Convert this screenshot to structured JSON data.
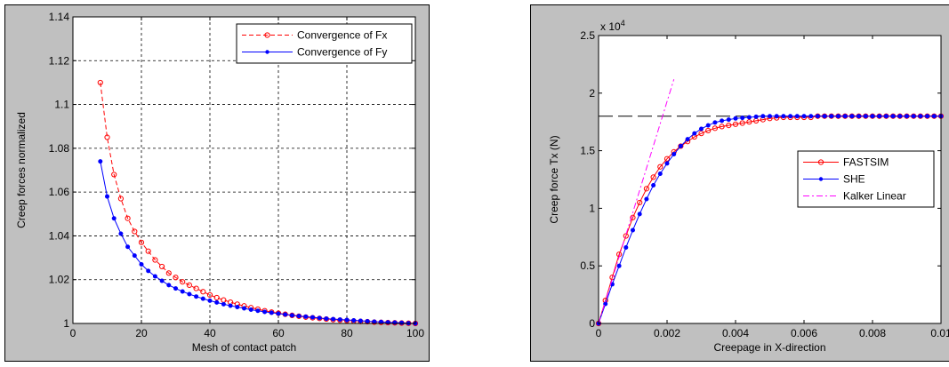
{
  "chart_data": [
    {
      "type": "line",
      "xlabel": "Mesh of contact patch",
      "ylabel": "Creep forces normalized",
      "xlim": [
        0,
        100
      ],
      "ylim": [
        1,
        1.14
      ],
      "x_ticks": [
        "0",
        "20",
        "40",
        "60",
        "80",
        "100"
      ],
      "y_ticks": [
        "1",
        "1.02",
        "1.04",
        "1.06",
        "1.08",
        "1.1",
        "1.12",
        "1.14"
      ],
      "grid": "dashed",
      "legend": "top-right",
      "series": [
        {
          "name": "Convergence of Fx",
          "color": "#ff0000",
          "marker": "open-circle",
          "line": "dashed",
          "x": [
            8,
            10,
            12,
            14,
            16,
            18,
            20,
            22,
            24,
            26,
            28,
            30,
            32,
            34,
            36,
            38,
            40,
            42,
            44,
            46,
            48,
            50,
            52,
            54,
            56,
            58,
            60,
            62,
            64,
            66,
            68,
            70,
            72,
            74,
            76,
            78,
            80,
            82,
            84,
            86,
            88,
            90,
            92,
            94,
            96,
            98,
            100
          ],
          "y": [
            1.11,
            1.085,
            1.068,
            1.057,
            1.048,
            1.042,
            1.037,
            1.033,
            1.029,
            1.026,
            1.023,
            1.021,
            1.019,
            1.0175,
            1.016,
            1.0145,
            1.013,
            1.0118,
            1.0107,
            1.0097,
            1.0088,
            1.008,
            1.0072,
            1.0065,
            1.0058,
            1.0052,
            1.0047,
            1.0042,
            1.0037,
            1.0033,
            1.0029,
            1.0026,
            1.0023,
            1.002,
            1.0017,
            1.0015,
            1.0013,
            1.0011,
            1.0009,
            1.0008,
            1.0006,
            1.0005,
            1.0004,
            1.0003,
            1.0002,
            1.0001,
            1.0
          ]
        },
        {
          "name": "Convergence of Fy",
          "color": "#0000ff",
          "marker": "dot",
          "line": "solid",
          "x": [
            8,
            10,
            12,
            14,
            16,
            18,
            20,
            22,
            24,
            26,
            28,
            30,
            32,
            34,
            36,
            38,
            40,
            42,
            44,
            46,
            48,
            50,
            52,
            54,
            56,
            58,
            60,
            62,
            64,
            66,
            68,
            70,
            72,
            74,
            76,
            78,
            80,
            82,
            84,
            86,
            88,
            90,
            92,
            94,
            96,
            98,
            100
          ],
          "y": [
            1.074,
            1.058,
            1.048,
            1.041,
            1.035,
            1.031,
            1.027,
            1.024,
            1.0215,
            1.0195,
            1.0175,
            1.016,
            1.0146,
            1.0134,
            1.0123,
            1.0113,
            1.0104,
            1.0096,
            1.0088,
            1.0081,
            1.0075,
            1.0069,
            1.0063,
            1.0058,
            1.0053,
            1.0049,
            1.0045,
            1.0041,
            1.0037,
            1.0034,
            1.0031,
            1.0028,
            1.0025,
            1.0022,
            1.002,
            1.0018,
            1.0016,
            1.0014,
            1.0012,
            1.001,
            1.0008,
            1.0007,
            1.0005,
            1.0004,
            1.0003,
            1.0001,
            1.0
          ]
        }
      ]
    },
    {
      "type": "line",
      "xlabel": "Creepage in X-direction",
      "ylabel": "Creep force Tx (N)",
      "multiplier": "x 10",
      "multiplier_exp": "4",
      "xlim": [
        0,
        0.01
      ],
      "ylim": [
        0,
        2.5
      ],
      "x_ticks": [
        "0",
        "0.002",
        "0.004",
        "0.006",
        "0.008",
        "0.01"
      ],
      "y_ticks": [
        "0",
        "0.5",
        "1",
        "1.5",
        "2",
        "2.5"
      ],
      "grid": "off",
      "legend": "right",
      "saturation_level": 1.8,
      "series": [
        {
          "name": "FASTSIM",
          "color": "#ff0000",
          "marker": "open-circle",
          "line": "solid",
          "x": [
            0,
            0.0002,
            0.0004,
            0.0006,
            0.0008,
            0.001,
            0.0012,
            0.0014,
            0.0016,
            0.0018,
            0.002,
            0.0022,
            0.0024,
            0.0026,
            0.0028,
            0.003,
            0.0032,
            0.0034,
            0.0036,
            0.0038,
            0.004,
            0.0042,
            0.0044,
            0.0046,
            0.0048,
            0.005,
            0.0052,
            0.0054,
            0.0056,
            0.0058,
            0.006,
            0.0062,
            0.0064,
            0.0066,
            0.0068,
            0.007,
            0.0072,
            0.0074,
            0.0076,
            0.0078,
            0.008,
            0.0082,
            0.0084,
            0.0086,
            0.0088,
            0.009,
            0.0092,
            0.0094,
            0.0096,
            0.0098,
            0.01
          ],
          "y": [
            0,
            0.2,
            0.4,
            0.6,
            0.76,
            0.92,
            1.05,
            1.17,
            1.27,
            1.36,
            1.43,
            1.49,
            1.54,
            1.58,
            1.62,
            1.65,
            1.675,
            1.695,
            1.71,
            1.72,
            1.73,
            1.74,
            1.75,
            1.76,
            1.77,
            1.78,
            1.785,
            1.79,
            1.79,
            1.79,
            1.79,
            1.79,
            1.8,
            1.8,
            1.8,
            1.8,
            1.8,
            1.8,
            1.8,
            1.8,
            1.8,
            1.8,
            1.8,
            1.8,
            1.8,
            1.8,
            1.8,
            1.8,
            1.8,
            1.8,
            1.8
          ]
        },
        {
          "name": "SHE",
          "color": "#0000ff",
          "marker": "dot",
          "line": "solid",
          "x": [
            0,
            0.0002,
            0.0004,
            0.0006,
            0.0008,
            0.001,
            0.0012,
            0.0014,
            0.0016,
            0.0018,
            0.002,
            0.0022,
            0.0024,
            0.0026,
            0.0028,
            0.003,
            0.0032,
            0.0034,
            0.0036,
            0.0038,
            0.004,
            0.0042,
            0.0044,
            0.0046,
            0.0048,
            0.005,
            0.0052,
            0.0054,
            0.0056,
            0.0058,
            0.006,
            0.0062,
            0.0064,
            0.0066,
            0.0068,
            0.007,
            0.0072,
            0.0074,
            0.0076,
            0.0078,
            0.008,
            0.0082,
            0.0084,
            0.0086,
            0.0088,
            0.009,
            0.0092,
            0.0094,
            0.0096,
            0.0098,
            0.01
          ],
          "y": [
            0,
            0.17,
            0.34,
            0.5,
            0.66,
            0.81,
            0.95,
            1.08,
            1.2,
            1.3,
            1.39,
            1.47,
            1.54,
            1.6,
            1.65,
            1.69,
            1.72,
            1.745,
            1.76,
            1.77,
            1.78,
            1.785,
            1.79,
            1.795,
            1.8,
            1.8,
            1.8,
            1.8,
            1.8,
            1.8,
            1.8,
            1.8,
            1.8,
            1.8,
            1.8,
            1.8,
            1.8,
            1.8,
            1.8,
            1.8,
            1.8,
            1.8,
            1.8,
            1.8,
            1.8,
            1.8,
            1.8,
            1.8,
            1.8,
            1.8,
            1.8
          ]
        },
        {
          "name": "Kalker Linear",
          "color": "#ff00ff",
          "marker": "none",
          "line": "dash-dot",
          "x": [
            0,
            0.0022
          ],
          "y": [
            0,
            2.12
          ]
        }
      ]
    }
  ]
}
